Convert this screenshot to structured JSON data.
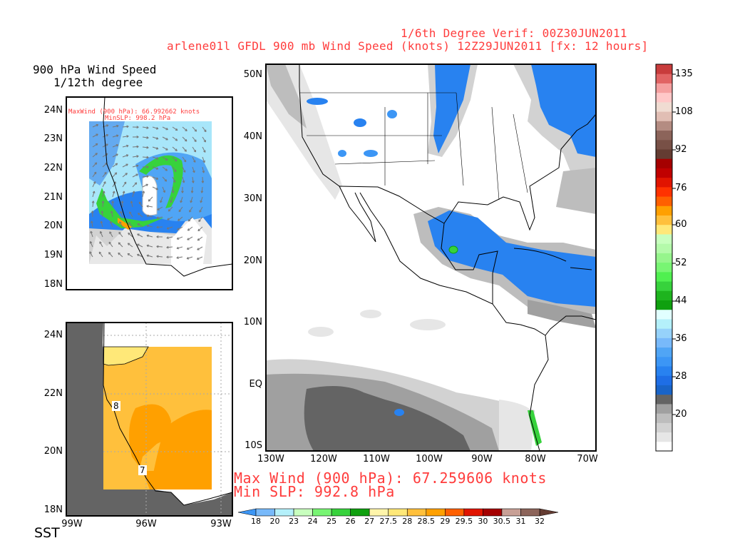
{
  "header": {
    "line1": "1/6th Degree Verif: 00Z30JUN2011",
    "line2": "arlene01l GFDL 900 mb Wind Speed (knots) 12Z29JUN2011 [fx: 12 hours]"
  },
  "inset_wind": {
    "title1": "900 hPa Wind Speed",
    "title2": "1/12th degree",
    "maxwind": "MaxWind (900 hPa): 66.992662 knots",
    "minslp": "MinSLP: 998.2 hPa",
    "lat_labels": [
      "24N",
      "23N",
      "22N",
      "21N",
      "20N",
      "19N",
      "18N"
    ]
  },
  "inset_sst": {
    "label": "SST",
    "lat_labels": [
      "24N",
      "22N",
      "20N",
      "18N"
    ],
    "lon_labels": [
      "99W",
      "96W",
      "93W"
    ],
    "contour_labels": [
      "8",
      "7"
    ]
  },
  "main_map": {
    "lat_labels": [
      "50N",
      "40N",
      "30N",
      "20N",
      "10N",
      "EQ",
      "10S"
    ],
    "lon_labels": [
      "130W",
      "120W",
      "110W",
      "100W",
      "90W",
      "80W",
      "70W"
    ],
    "max_wind": "Max Wind (900 hPa): 67.259606 knots",
    "min_slp": "Min SLP: 992.8 hPa"
  },
  "wind_colorbar": {
    "labels": [
      "135",
      "108",
      "92",
      "76",
      "60",
      "52",
      "44",
      "36",
      "28",
      "20"
    ],
    "colors_bottom_to_top": [
      "#ffffff",
      "#e6e6e6",
      "#d2d2d2",
      "#bdbdbd",
      "#a0a0a0",
      "#646464",
      "#1964c8",
      "#1e6ee6",
      "#2882f0",
      "#3c96f5",
      "#50a5f5",
      "#78b9fa",
      "#96d2fa",
      "#b4f0fa",
      "#e1ffff",
      "#0fa00f",
      "#1eb41e",
      "#37d23c",
      "#50f050",
      "#78f573",
      "#96f58c",
      "#b4faaa",
      "#c8ffbe",
      "#ffe878",
      "#ffc03c",
      "#ffa000",
      "#ff6000",
      "#ff3200",
      "#e11400",
      "#c00000",
      "#a50000",
      "#643c32",
      "#785046",
      "#8c645a",
      "#b48c82",
      "#e1beb4",
      "#f0dcd2",
      "#ffc8c8",
      "#f5a0a0",
      "#e16464",
      "#c83c3c"
    ]
  },
  "sst_colorbar": {
    "labels": [
      "18",
      "20",
      "23",
      "24",
      "25",
      "26",
      "27",
      "27.5",
      "28",
      "28.5",
      "29",
      "29.5",
      "30",
      "30.5",
      "31",
      "32"
    ],
    "colors": [
      "#78b9fa",
      "#b4f0fa",
      "#c8ffbe",
      "#78f573",
      "#37d23c",
      "#0fa00f",
      "#fff5aa",
      "#ffe878",
      "#ffc03c",
      "#ffa000",
      "#ff6000",
      "#e11400",
      "#a50000",
      "#c8a096",
      "#8c645a"
    ],
    "left_arrow_color": "#3c96f5",
    "right_arrow_color": "#643c32"
  }
}
